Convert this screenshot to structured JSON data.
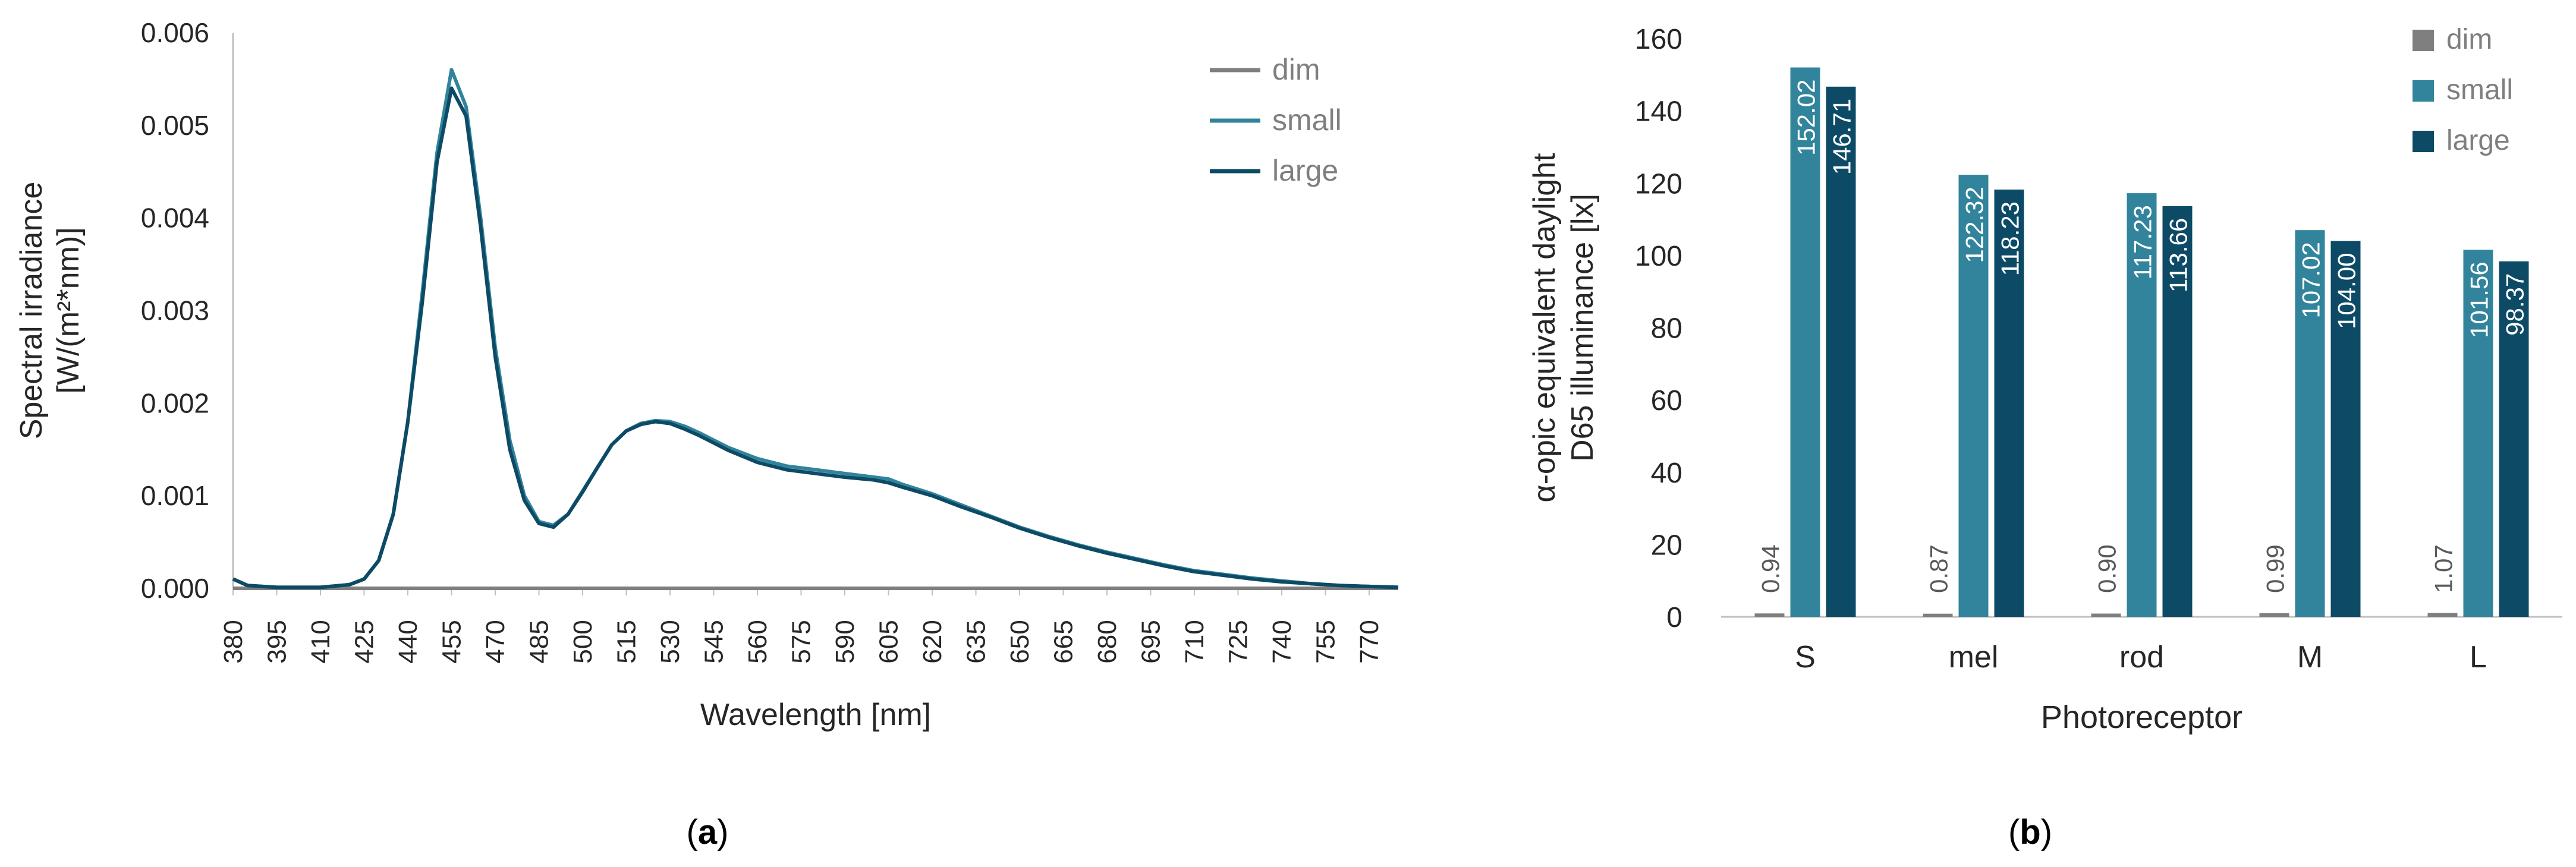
{
  "colors": {
    "dim": "#7f7f7f",
    "small": "#31849b",
    "large": "#0d4a66",
    "axis": "#bfbfbf",
    "text": "#262626"
  },
  "panels": {
    "a_label": "a",
    "b_label": "b"
  },
  "chart_data": [
    {
      "type": "line",
      "title": "",
      "xlabel": "Wavelength [nm]",
      "ylabel_lines": [
        "Spectral irradiance",
        "[W/(m²*nm)]"
      ],
      "xlim": [
        380,
        780
      ],
      "ylim": [
        0,
        0.006
      ],
      "x_ticks": [
        "380",
        "395",
        "410",
        "425",
        "440",
        "455",
        "470",
        "485",
        "500",
        "515",
        "530",
        "545",
        "560",
        "575",
        "590",
        "605",
        "620",
        "635",
        "650",
        "665",
        "680",
        "695",
        "710",
        "725",
        "740",
        "755",
        "770"
      ],
      "y_ticks": [
        "0.000",
        "0.001",
        "0.002",
        "0.003",
        "0.004",
        "0.005",
        "0.006"
      ],
      "legend": [
        "dim",
        "small",
        "large"
      ],
      "legend_position": "top-right",
      "series": [
        {
          "name": "dim",
          "x": [
            380,
            420,
            500,
            600,
            700,
            780
          ],
          "y": [
            0,
            0,
            0,
            0,
            0,
            0
          ]
        },
        {
          "name": "small",
          "x": [
            380,
            385,
            395,
            410,
            420,
            425,
            430,
            435,
            440,
            445,
            450,
            455,
            460,
            465,
            470,
            475,
            480,
            485,
            490,
            495,
            500,
            505,
            510,
            515,
            520,
            525,
            530,
            535,
            540,
            545,
            550,
            560,
            570,
            580,
            590,
            600,
            605,
            610,
            620,
            630,
            640,
            650,
            660,
            670,
            680,
            690,
            700,
            710,
            720,
            730,
            740,
            750,
            760,
            770,
            780
          ],
          "y": [
            0.0001,
            3e-05,
            1e-05,
            1e-05,
            4e-05,
            0.0001,
            0.0003,
            0.0008,
            0.0018,
            0.0032,
            0.0047,
            0.0056,
            0.0052,
            0.004,
            0.0026,
            0.0016,
            0.001,
            0.00072,
            0.00068,
            0.0008,
            0.00105,
            0.0013,
            0.00155,
            0.0017,
            0.00178,
            0.00181,
            0.0018,
            0.00175,
            0.00168,
            0.0016,
            0.00152,
            0.0014,
            0.00132,
            0.00128,
            0.00124,
            0.0012,
            0.00118,
            0.00112,
            0.00102,
            0.0009,
            0.00078,
            0.00066,
            0.00056,
            0.00047,
            0.00039,
            0.00032,
            0.00025,
            0.00019,
            0.00015,
            0.00011,
            8e-05,
            5e-05,
            3e-05,
            2e-05,
            1e-05
          ]
        },
        {
          "name": "large",
          "x": [
            380,
            385,
            395,
            410,
            420,
            425,
            430,
            435,
            440,
            445,
            450,
            455,
            460,
            465,
            470,
            475,
            480,
            485,
            490,
            495,
            500,
            505,
            510,
            515,
            520,
            525,
            530,
            535,
            540,
            545,
            550,
            560,
            570,
            580,
            590,
            600,
            605,
            610,
            620,
            630,
            640,
            650,
            660,
            670,
            680,
            690,
            700,
            710,
            720,
            730,
            740,
            750,
            760,
            770,
            780
          ],
          "y": [
            0.0001,
            3e-05,
            1e-05,
            1e-05,
            4e-05,
            0.0001,
            0.0003,
            0.0008,
            0.0018,
            0.0031,
            0.0046,
            0.0054,
            0.0051,
            0.0039,
            0.0025,
            0.0015,
            0.00095,
            0.0007,
            0.00066,
            0.0008,
            0.00104,
            0.0013,
            0.00155,
            0.0017,
            0.00177,
            0.0018,
            0.00178,
            0.00172,
            0.00165,
            0.00157,
            0.00149,
            0.00136,
            0.00128,
            0.00124,
            0.0012,
            0.00117,
            0.00114,
            0.00109,
            0.001,
            0.00088,
            0.00077,
            0.00065,
            0.00055,
            0.00046,
            0.00038,
            0.00031,
            0.00024,
            0.00018,
            0.00014,
            0.0001,
            7e-05,
            5e-05,
            3e-05,
            2e-05,
            1e-05
          ]
        }
      ]
    },
    {
      "type": "bar",
      "title": "",
      "xlabel": "Photoreceptor",
      "ylabel_lines": [
        "α-opic equivalent daylight",
        "D65 illuminance [lx]"
      ],
      "ylim": [
        0,
        160
      ],
      "y_ticks": [
        "0",
        "20",
        "40",
        "60",
        "80",
        "100",
        "120",
        "140",
        "160"
      ],
      "categories": [
        "S",
        "mel",
        "rod",
        "M",
        "L"
      ],
      "legend_position": "top-right",
      "series": [
        {
          "name": "dim",
          "values": [
            0.94,
            0.87,
            0.9,
            0.99,
            1.07
          ],
          "labels": [
            "0.94",
            "0.87",
            "0.90",
            "0.99",
            "1.07"
          ]
        },
        {
          "name": "small",
          "values": [
            152.02,
            122.32,
            117.23,
            107.02,
            101.56
          ],
          "labels": [
            "152.02",
            "122.32",
            "117.23",
            "107.02",
            "101.56"
          ]
        },
        {
          "name": "large",
          "values": [
            146.71,
            118.23,
            113.66,
            104.0,
            98.37
          ],
          "labels": [
            "146.71",
            "118.23",
            "113.66",
            "104.00",
            "98.37"
          ]
        }
      ]
    }
  ]
}
